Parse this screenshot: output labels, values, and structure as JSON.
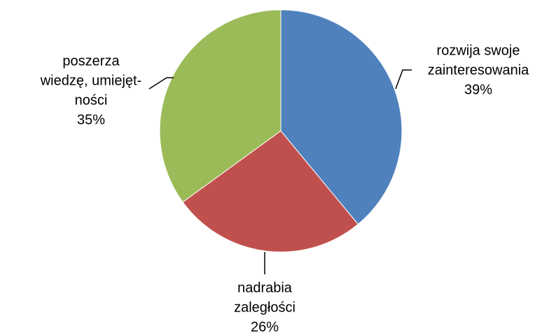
{
  "chart_data": {
    "type": "pie",
    "categories": [
      [
        "rozwija swoje",
        "zainteresowania"
      ],
      [
        "nadrabia",
        "zaległości"
      ],
      [
        "poszerza",
        "wiedzę, umiejęt-",
        "ności"
      ]
    ],
    "values": [
      39,
      26,
      35
    ],
    "value_labels": [
      "39%",
      "26%",
      "35%"
    ],
    "colors": [
      "#4f81bd",
      "#c0504d",
      "#9bbb59"
    ]
  }
}
